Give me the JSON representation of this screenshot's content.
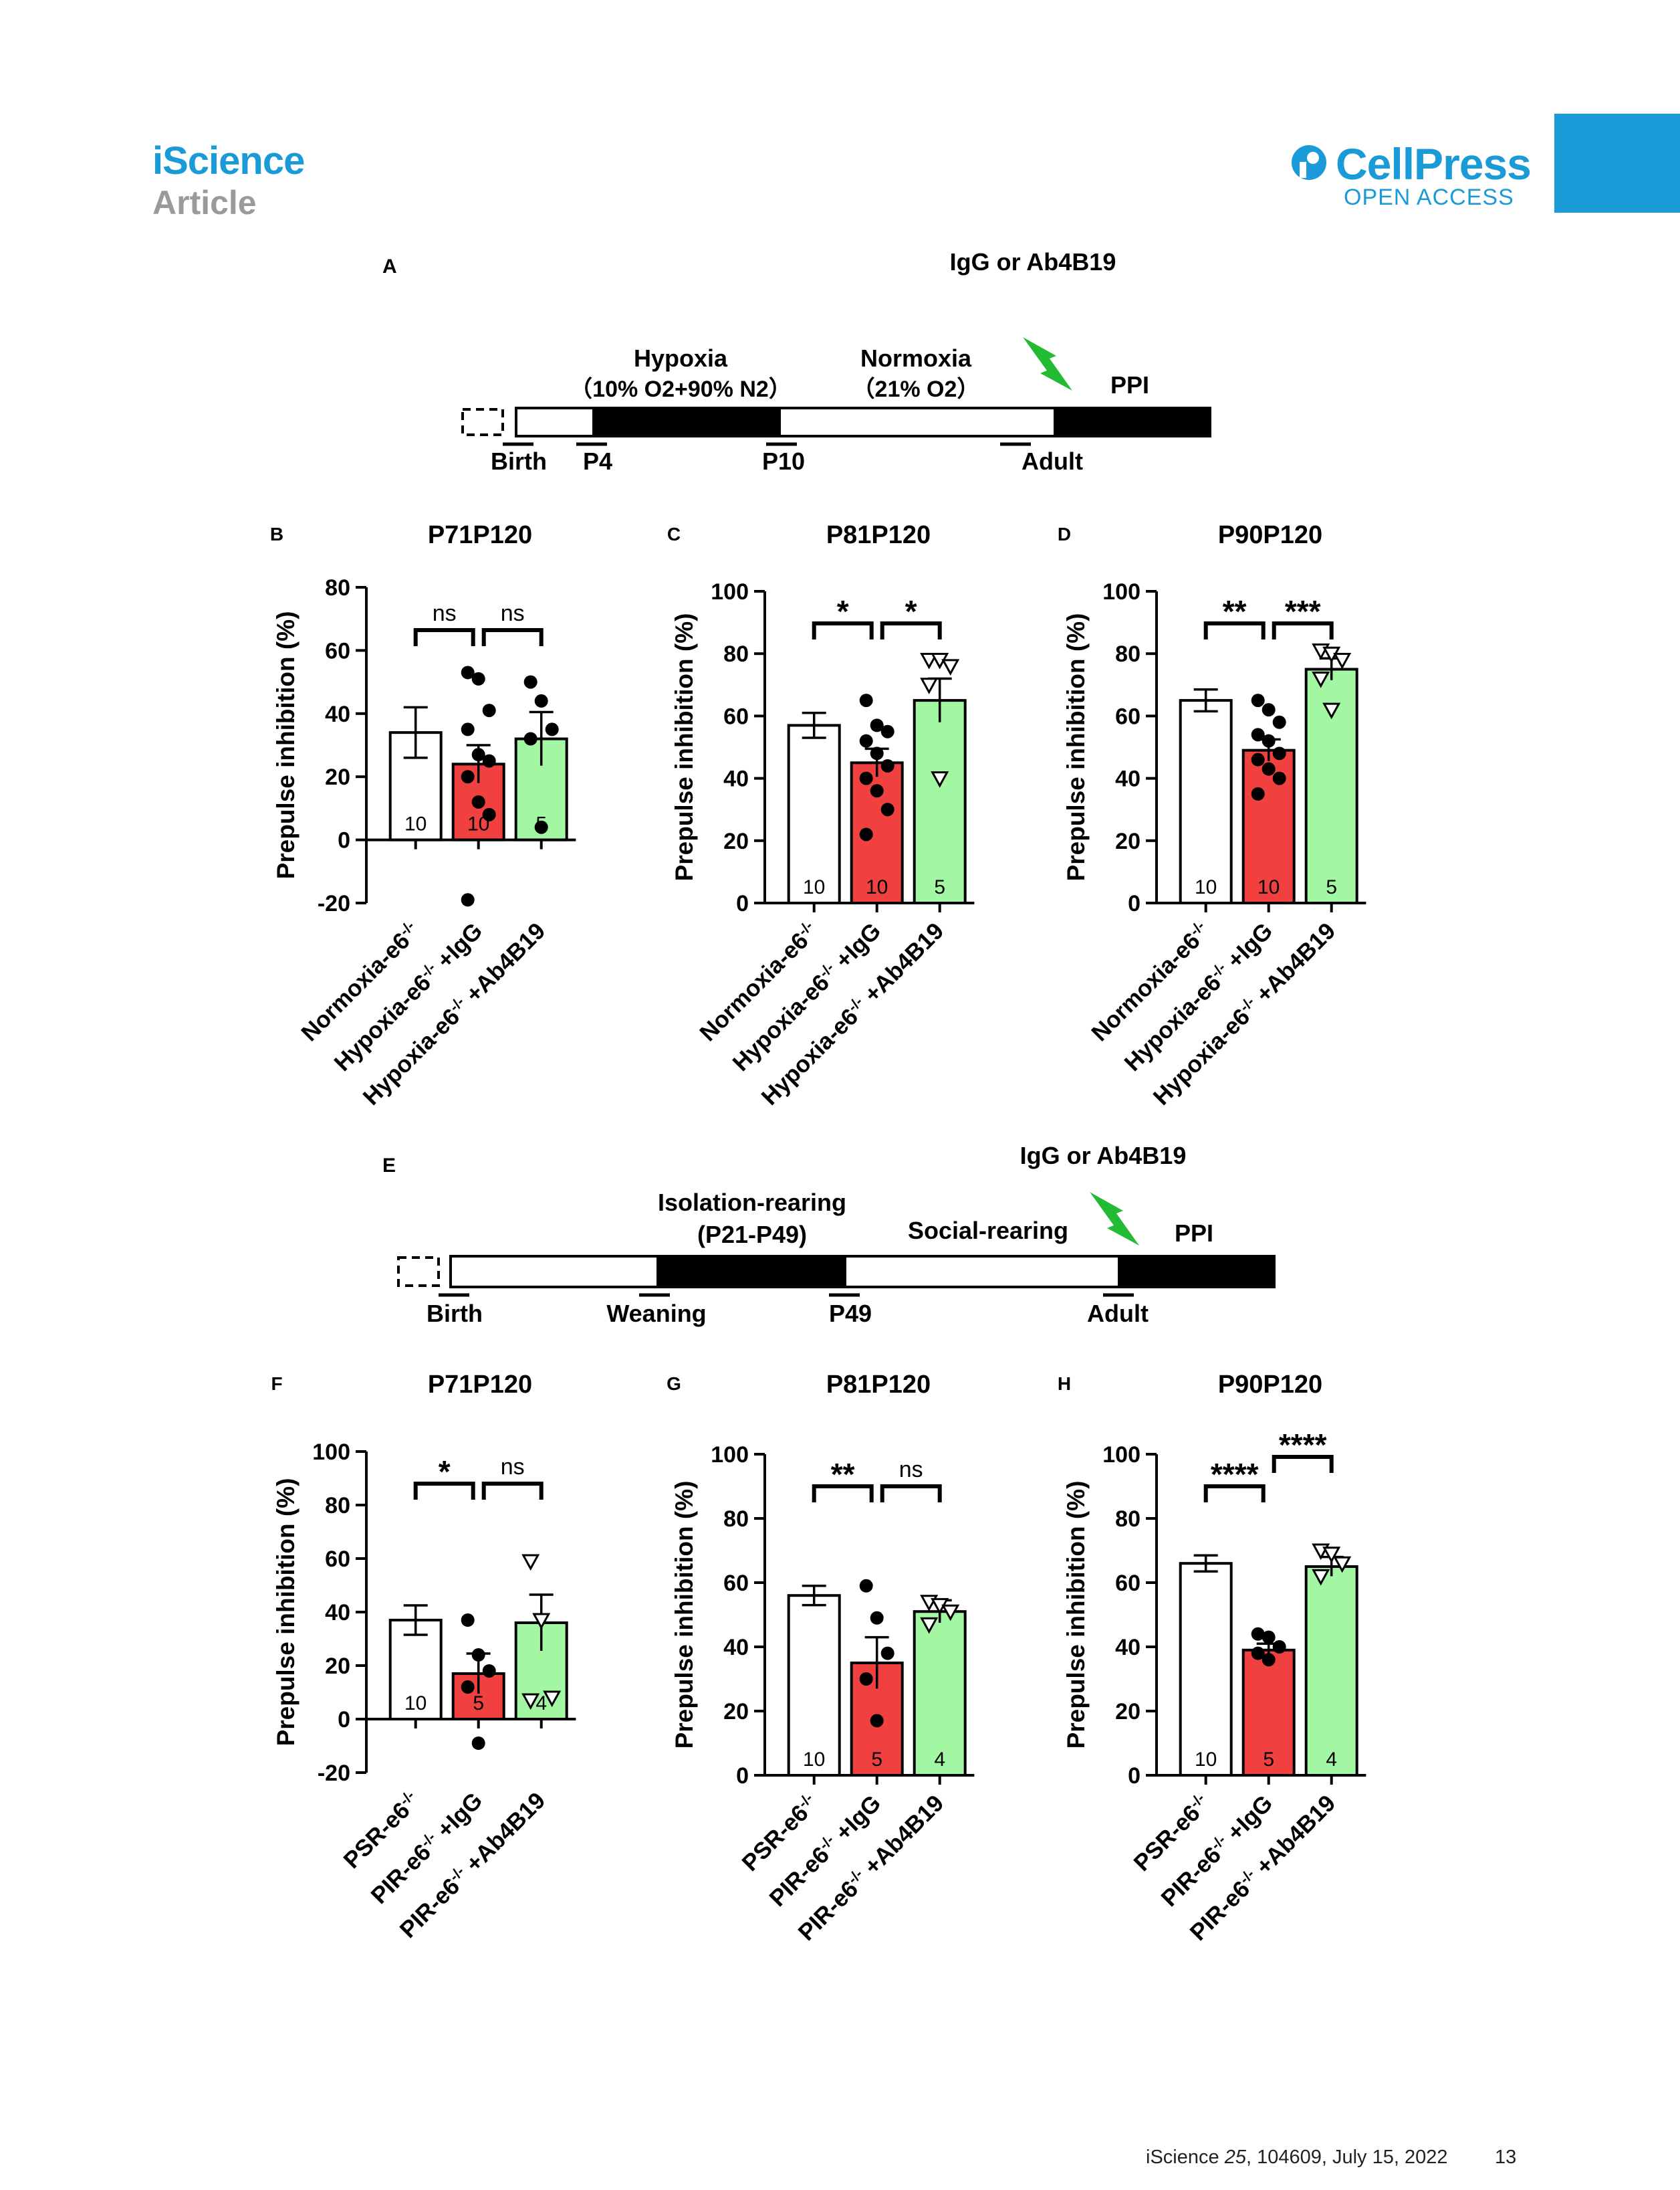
{
  "header": {
    "journal": "iScience",
    "section": "Article",
    "brand": "CellPress",
    "access": "OPEN ACCESS"
  },
  "footer": {
    "journal": "iScience",
    "volume": "25",
    "citation": ", 104609, July 15, 2022",
    "page": "13"
  },
  "colors": {
    "brand_blue": "#1a9ad6",
    "red_bar": "#f04040",
    "green_bar": "#a3f7a3",
    "bolt_green": "#22bb33"
  },
  "panels": {
    "A": {
      "letter": "A",
      "treatment": "IgG or Ab4B19",
      "phase1_title": "Hypoxia",
      "phase1_cond": "（10% O2+90% N2）",
      "phase2_title": "Normoxia",
      "phase2_cond": "（21% O2）",
      "end_label": "PPI",
      "milestones": [
        "Birth",
        "P4",
        "P10",
        "Adult"
      ],
      "icon": "lightning-bolt-icon"
    },
    "E": {
      "letter": "E",
      "treatment": "IgG or Ab4B19",
      "phase1_title": "Isolation-rearing",
      "phase1_cond": "(P21-P49)",
      "phase2_title": "Social-rearing",
      "end_label": "PPI",
      "milestones": [
        "Birth",
        "Weaning",
        "P49",
        "Adult"
      ],
      "icon": "lightning-bolt-icon"
    }
  },
  "chart_data": [
    {
      "panel": "B",
      "type": "bar",
      "title": "P71P120",
      "ylabel": "Prepulse inhibition (%)",
      "ylim": [
        -20,
        80
      ],
      "yticks": [
        -20,
        0,
        20,
        40,
        60,
        80
      ],
      "categories": [
        "Normoxia-e6-/-",
        "Hypoxia-e6-/- +IgG",
        "Hypoxia-e6-/- +Ab4B19"
      ],
      "values": [
        34,
        24,
        32
      ],
      "sem": [
        8,
        6,
        8.5
      ],
      "n": [
        "10",
        "10",
        "5"
      ],
      "points": [
        [],
        [
          53,
          51,
          41,
          35,
          27,
          25,
          20,
          12,
          8,
          -19
        ],
        [
          50,
          44,
          35,
          32,
          4
        ]
      ],
      "significance": [
        "ns",
        "ns"
      ]
    },
    {
      "panel": "C",
      "type": "bar",
      "title": "P81P120",
      "ylabel": "Prepulse inhibition (%)",
      "ylim": [
        0,
        100
      ],
      "yticks": [
        0,
        20,
        40,
        60,
        80,
        100
      ],
      "categories": [
        "Normoxia-e6-/-",
        "Hypoxia-e6-/- +IgG",
        "Hypoxia-e6-/- +Ab4B19"
      ],
      "values": [
        57,
        45,
        65
      ],
      "sem": [
        4,
        4.5,
        7
      ],
      "n": [
        "10",
        "10",
        "5"
      ],
      "points": [
        [],
        [
          65,
          57,
          55,
          52,
          48,
          44,
          40,
          36,
          30,
          22
        ],
        [
          78,
          78,
          76,
          70,
          40
        ]
      ],
      "significance": [
        "*",
        "*"
      ]
    },
    {
      "panel": "D",
      "type": "bar",
      "title": "P90P120",
      "ylabel": "Prepulse inhibition (%)",
      "ylim": [
        0,
        100
      ],
      "yticks": [
        0,
        20,
        40,
        60,
        80,
        100
      ],
      "categories": [
        "Normoxia-e6-/-",
        "Hypoxia-e6-/- +IgG",
        "Hypoxia-e6-/- +Ab4B19"
      ],
      "values": [
        65,
        49,
        75
      ],
      "sem": [
        3.5,
        3.5,
        3.5
      ],
      "n": [
        "10",
        "10",
        "5"
      ],
      "points": [
        [],
        [
          65,
          62,
          58,
          54,
          52,
          48,
          46,
          43,
          40,
          35
        ],
        [
          81,
          80,
          78,
          72,
          62
        ]
      ],
      "significance": [
        "**",
        "***"
      ]
    },
    {
      "panel": "F",
      "type": "bar",
      "title": "P71P120",
      "ylabel": "Prepulse inhibition (%)",
      "ylim": [
        -20,
        100
      ],
      "yticks": [
        -20,
        0,
        20,
        40,
        60,
        80,
        100
      ],
      "categories": [
        "PSR-e6-/-",
        "PIR-e6-/- +IgG",
        "PIR-e6-/- +Ab4B19"
      ],
      "values": [
        37,
        17,
        36
      ],
      "sem": [
        5.5,
        7.5,
        10.5
      ],
      "n": [
        "10",
        "5",
        "4"
      ],
      "points": [
        [],
        [
          37,
          24,
          18,
          12,
          -9
        ],
        [
          59,
          37,
          8,
          7
        ]
      ],
      "significance": [
        "*",
        "ns"
      ]
    },
    {
      "panel": "G",
      "type": "bar",
      "title": "P81P120",
      "ylabel": "Prepulse inhibition (%)",
      "ylim": [
        0,
        100
      ],
      "yticks": [
        0,
        20,
        40,
        60,
        80,
        100
      ],
      "categories": [
        "PSR-e6-/-",
        "PIR-e6-/- +IgG",
        "PIR-e6-/- +Ab4B19"
      ],
      "values": [
        56,
        35,
        51
      ],
      "sem": [
        3,
        8,
        3.5
      ],
      "n": [
        "10",
        "5",
        "4"
      ],
      "points": [
        [],
        [
          59,
          49,
          38,
          30,
          17
        ],
        [
          54,
          53,
          51,
          47
        ]
      ],
      "significance": [
        "**",
        "ns"
      ]
    },
    {
      "panel": "H",
      "type": "bar",
      "title": "P90P120",
      "ylabel": "Prepulse inhibition (%)",
      "ylim": [
        0,
        100
      ],
      "yticks": [
        0,
        20,
        40,
        60,
        80,
        100
      ],
      "categories": [
        "PSR-e6-/-",
        "PIR-e6-/- +IgG",
        "PIR-e6-/- +Ab4B19"
      ],
      "values": [
        66,
        39,
        65
      ],
      "sem": [
        2.5,
        2,
        3
      ],
      "n": [
        "10",
        "5",
        "4"
      ],
      "points": [
        [],
        [
          44,
          43,
          40,
          38,
          36
        ],
        [
          70,
          69,
          66,
          62
        ]
      ],
      "significance": [
        "****",
        "****"
      ]
    }
  ]
}
